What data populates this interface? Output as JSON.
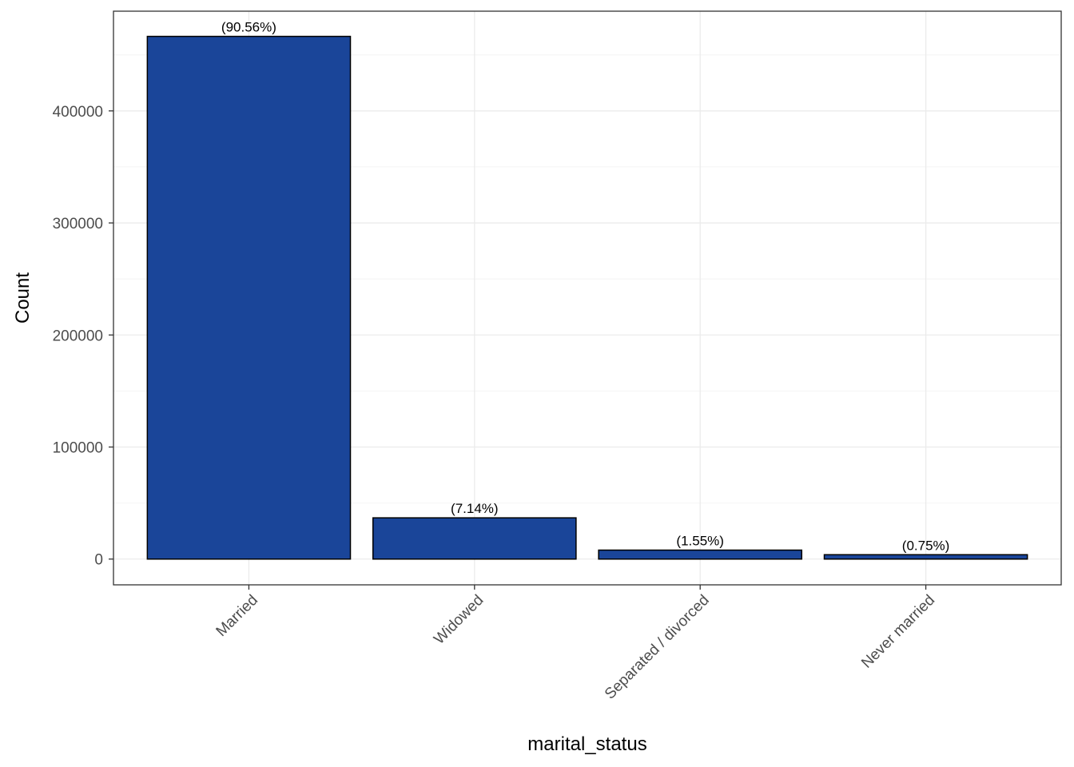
{
  "chart_data": {
    "type": "bar",
    "xlabel": "marital_status",
    "ylabel": "Count",
    "categories": [
      "Married",
      "Widowed",
      "Separated / divorced",
      "Never married"
    ],
    "values": [
      466500,
      36800,
      8000,
      3900
    ],
    "labels": [
      "(90.56%)",
      "(7.14%)",
      "(1.55%)",
      "(0.75%)"
    ],
    "yticks": [
      0,
      100000,
      200000,
      300000,
      400000
    ],
    "ylim": [
      -23000,
      489000
    ],
    "grid": true,
    "legend": "none",
    "colors": {
      "bar_fill": "#1a4599",
      "bar_stroke": "#000000",
      "grid_major": "#ebebeb",
      "grid_minor": "#f4f4f4",
      "panel_border": "#333333"
    }
  }
}
